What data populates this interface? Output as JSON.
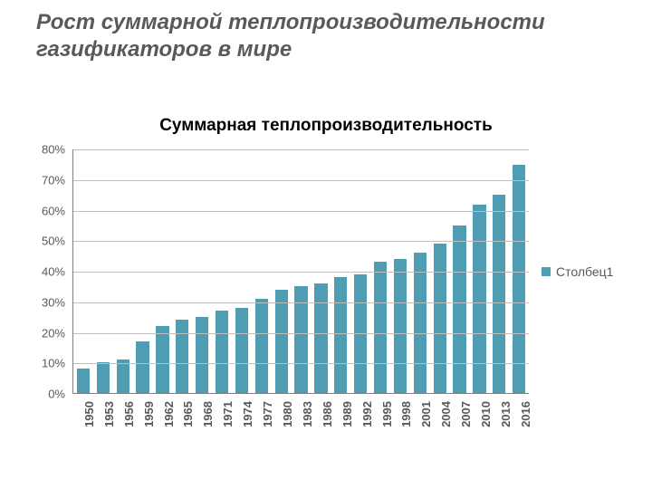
{
  "title": "Рост  суммарной теплопроизводительности газификаторов в мире",
  "title_fontsize": 24,
  "title_color": "#595959",
  "subtitle": "Суммарная теплопроизводительность",
  "subtitle_fontsize": 19,
  "subtitle_color": "#000000",
  "chart": {
    "type": "bar",
    "categories": [
      "1950",
      "1953",
      "1956",
      "1959",
      "1962",
      "1965",
      "1968",
      "1971",
      "1974",
      "1977",
      "1980",
      "1983",
      "1986",
      "1989",
      "1992",
      "1995",
      "1998",
      "2001",
      "2004",
      "2007",
      "2010",
      "2013",
      "2016"
    ],
    "values": [
      8,
      10,
      11,
      17,
      22,
      24,
      25,
      27,
      28,
      31,
      34,
      35,
      36,
      38,
      39,
      43,
      44,
      46,
      49,
      55,
      62,
      65,
      75
    ],
    "bar_color": "#4f9db3",
    "ylim": [
      0,
      80
    ],
    "ytick_step": 10,
    "ytick_suffix": "%",
    "grid_color": "#bfbfbf",
    "axis_color": "#808080",
    "label_color": "#595959",
    "ylabel_fontsize": 13,
    "xlabel_fontsize": 13,
    "background_color": "#ffffff",
    "bar_width": 0.65,
    "legend": {
      "label": "Столбец1",
      "swatch_color": "#4f9db3",
      "text_color": "#595959",
      "fontsize": 14,
      "position": "right"
    }
  }
}
